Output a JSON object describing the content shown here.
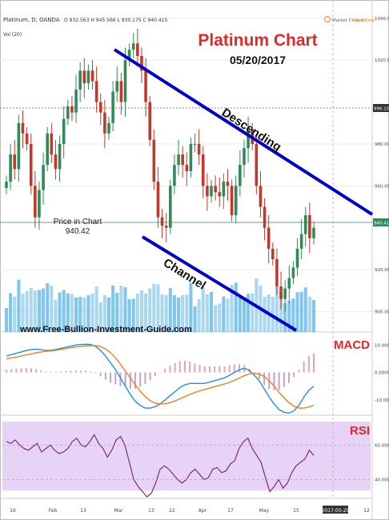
{
  "header": {
    "symbol": "Platinum, D, OANDA",
    "ohlc": "O 932.563 H 945.566 L 930.175 C 940.415",
    "status_left": "Market Closed",
    "status_right": "Realtime",
    "volume_label": "Vol (20)"
  },
  "annotations": {
    "title": "Platinum Chart",
    "date": "05/20/2017",
    "descending": "Descending",
    "channel": "Channel",
    "price_label": "Price in Chart",
    "price_value": "940.42",
    "website": "www.Free-Bullion-Investment-Guide.com",
    "macd_title": "MACD",
    "rsi_title": "RSI"
  },
  "colors": {
    "up_candle": "#2e8b57",
    "down_candle": "#c0392b",
    "channel_line": "#0000cc",
    "volume": "#56b4e9",
    "title_red": "#e32626",
    "macd_line": "#1f8fe0",
    "signal_line": "#f07f1f",
    "rsi_line": "#7a2b8a",
    "rsi_band": "#e7d3f5"
  },
  "chart_data": [
    {
      "type": "candlestick",
      "title": "Platinum Chart",
      "subtitle": "05/20/2017",
      "x_ticks": [
        "16",
        "Feb",
        "13",
        "Mar",
        "13",
        "22",
        "Apr",
        "17",
        "May",
        "15",
        "2017-05-29",
        "12"
      ],
      "y_ticks": [
        1040,
        1020,
        980,
        960,
        920,
        900
      ],
      "ylim": [
        891,
        1043
      ],
      "marked_prices": [
        "996.156",
        "940.415"
      ],
      "current_price": 940.415,
      "channel_lines": [
        {
          "name": "Descending",
          "from": {
            "bar": 0,
            "price": 1033
          },
          "to": {
            "bar": 1,
            "price": 942
          }
        },
        {
          "name": "Channel",
          "from": {
            "bar": 0,
            "price": 935
          },
          "to": {
            "bar": 1,
            "price": 890
          }
        }
      ],
      "close": [
        962,
        975,
        968,
        990,
        985,
        980,
        960,
        945,
        958,
        970,
        985,
        975,
        968,
        980,
        992,
        998,
        995,
        1006,
        1015,
        1009,
        1015,
        1010,
        1000,
        995,
        985,
        990,
        1005,
        1010,
        1000,
        1020,
        1025,
        1028,
        1022,
        1015,
        1000,
        982,
        962,
        945,
        941,
        940,
        960,
        970,
        975,
        970,
        967,
        980,
        980,
        975,
        960,
        955,
        960,
        957,
        955,
        962,
        960,
        946,
        960,
        970,
        978,
        987,
        980,
        960,
        950,
        940,
        930,
        925,
        912,
        906,
        911,
        916,
        921,
        930,
        937,
        946,
        935,
        940
      ]
    },
    {
      "type": "line",
      "title": "MACD",
      "y_ticks": [
        "10.0000",
        "0.0000",
        "-10.0000"
      ],
      "ylim": [
        -15,
        13
      ],
      "macd": [
        6,
        6.5,
        7,
        7.5,
        8,
        8.3,
        8.5,
        8.3,
        8,
        8.1,
        8.4,
        8.8,
        9.2,
        9.6,
        10,
        10.2,
        10.3,
        10.2,
        9.5,
        8,
        6,
        3.5,
        1,
        -2,
        -5,
        -8,
        -10.5,
        -12,
        -13,
        -13,
        -12.5,
        -11.5,
        -10,
        -8.5,
        -7,
        -5.5,
        -4.5,
        -4,
        -4,
        -4,
        -4,
        -3.5,
        -3,
        -2.5,
        -2,
        -1,
        0,
        1,
        1.5,
        0.8,
        -1,
        -3,
        -6,
        -9,
        -11.5,
        -13.5,
        -14.5,
        -14.8,
        -14,
        -12,
        -9,
        -6.5,
        -5
      ],
      "signal": [
        5,
        5.3,
        5.6,
        6,
        6.4,
        6.8,
        7.2,
        7.5,
        7.7,
        7.9,
        8.1,
        8.4,
        8.7,
        9,
        9.3,
        9.5,
        9.7,
        9.8,
        9.8,
        9.4,
        8.6,
        7.2,
        5.3,
        3,
        0.5,
        -2,
        -4.5,
        -6.8,
        -8.8,
        -10.3,
        -11.2,
        -11.5,
        -11.4,
        -11,
        -10.4,
        -9.6,
        -8.8,
        -8,
        -7.3,
        -6.7,
        -6.2,
        -5.7,
        -5.2,
        -4.7,
        -4.2,
        -3.6,
        -2.9,
        -2,
        -1.2,
        -0.5,
        -0.3,
        -0.6,
        -1.5,
        -3,
        -5,
        -7.2,
        -9.2,
        -11,
        -12.3,
        -13,
        -13,
        -12.6,
        -12
      ]
    },
    {
      "type": "line",
      "title": "RSI",
      "y_ticks": [
        "60.0000",
        "40.0000"
      ],
      "ylim": [
        30,
        75
      ],
      "values": [
        62,
        61,
        63,
        60,
        58,
        57,
        59,
        61,
        56,
        58,
        60,
        57,
        55,
        56,
        58,
        62,
        64,
        60,
        59,
        62,
        66,
        61,
        58,
        53,
        57,
        63,
        65,
        60,
        50,
        40,
        36,
        33,
        30,
        32,
        38,
        46,
        48,
        46,
        43,
        40,
        38,
        40,
        44,
        46,
        43,
        40,
        41,
        46,
        47,
        44,
        45,
        49,
        51,
        58,
        62,
        64,
        58,
        54,
        50,
        41,
        33,
        36,
        40,
        35,
        38,
        44,
        48,
        50,
        52,
        57,
        54
      ]
    }
  ]
}
